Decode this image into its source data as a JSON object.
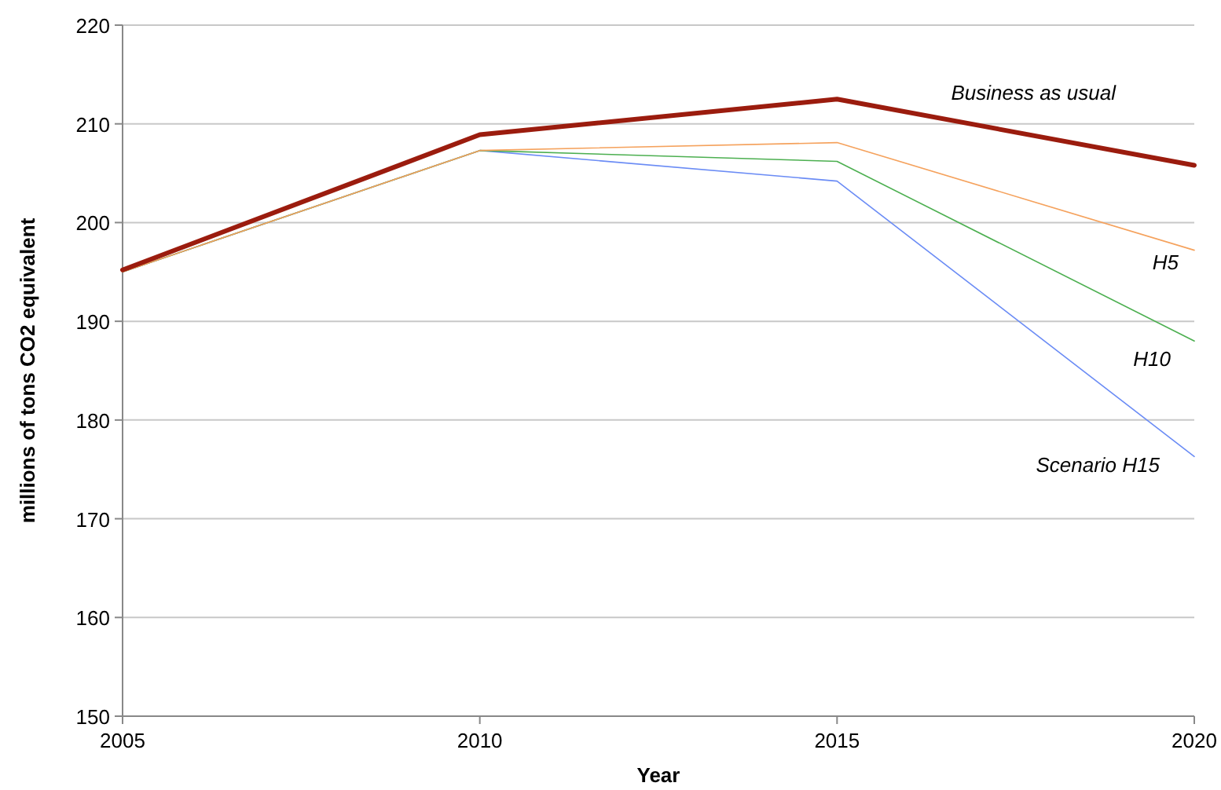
{
  "chart_data": {
    "type": "line",
    "xlabel": "Year",
    "ylabel": "millions of tons CO2 equivalent",
    "x": [
      2005,
      2010,
      2015,
      2020
    ],
    "xlim": [
      2005,
      2020
    ],
    "xticks": [
      2005,
      2010,
      2015,
      2020
    ],
    "ylim": [
      150,
      220
    ],
    "yticks": [
      150,
      160,
      170,
      180,
      190,
      200,
      210,
      220
    ],
    "grid": "y",
    "marker": "none",
    "line_style": "solid",
    "series": [
      {
        "name": "Scenario H15",
        "color": "#6b8cf5",
        "values": [
          195,
          207.3,
          204.2,
          176.3
        ]
      },
      {
        "name": "H10",
        "color": "#4caf50",
        "values": [
          195,
          207.3,
          206.2,
          188.0
        ]
      },
      {
        "name": "H5",
        "color": "#f5a25d",
        "values": [
          195,
          207.3,
          208.1,
          197.2
        ]
      },
      {
        "name": "Business as usual",
        "color": "#9b1c0e",
        "values": [
          195.2,
          208.9,
          212.5,
          205.8
        ]
      }
    ]
  }
}
